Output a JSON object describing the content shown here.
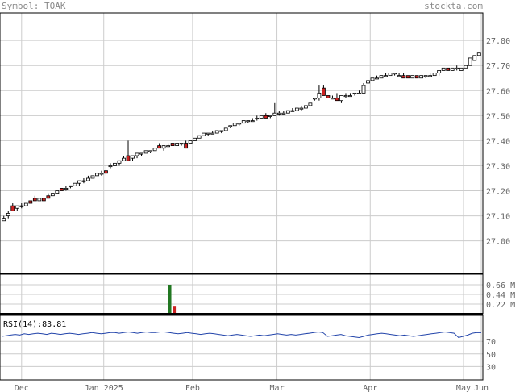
{
  "header": {
    "symbol_label": "Symbol: TOAK",
    "site": "stockta.com"
  },
  "colors": {
    "grid": "#cccccc",
    "frame": "#000000",
    "up": "#ffffff",
    "down": "#cc2222",
    "vol_up": "#227722",
    "vol_down": "#cc2222",
    "rsi_line": "#2244aa"
  },
  "chart_data": [
    {
      "type": "candlestick",
      "title": "",
      "y_ticks": [
        "27.80",
        "27.70",
        "27.60",
        "27.50",
        "27.40",
        "27.30",
        "27.20",
        "27.10",
        "27.00"
      ],
      "ylim": [
        26.87,
        27.91
      ],
      "x_ticks": [
        "Dec",
        "Jan 2025",
        "Feb",
        "Mar",
        "Apr",
        "May",
        "Jun"
      ],
      "grid": true,
      "series": [
        {
          "date": "Nov 27",
          "o": 27.08,
          "h": 27.1,
          "l": 27.08,
          "c": 27.09
        },
        {
          "date": "Nov 29",
          "o": 27.1,
          "h": 27.12,
          "l": 27.09,
          "c": 27.11
        },
        {
          "date": "Dec 2",
          "o": 27.14,
          "h": 27.15,
          "l": 27.12,
          "c": 27.12
        },
        {
          "date": "Dec 3",
          "o": 27.13,
          "h": 27.14,
          "l": 27.12,
          "c": 27.14
        },
        {
          "date": "Dec 4",
          "o": 27.14,
          "h": 27.15,
          "l": 27.13,
          "c": 27.14
        },
        {
          "date": "Dec 5",
          "o": 27.14,
          "h": 27.15,
          "l": 27.14,
          "c": 27.15
        },
        {
          "date": "Dec 6",
          "o": 27.16,
          "h": 27.16,
          "l": 27.15,
          "c": 27.15
        },
        {
          "date": "Dec 9",
          "o": 27.17,
          "h": 27.18,
          "l": 27.16,
          "c": 27.16
        },
        {
          "date": "Dec 10",
          "o": 27.16,
          "h": 27.17,
          "l": 27.16,
          "c": 27.17
        },
        {
          "date": "Dec 11",
          "o": 27.17,
          "h": 27.17,
          "l": 27.16,
          "c": 27.16
        },
        {
          "date": "Dec 12",
          "o": 27.18,
          "h": 27.19,
          "l": 27.17,
          "c": 27.17
        },
        {
          "date": "Dec 13",
          "o": 27.18,
          "h": 27.19,
          "l": 27.18,
          "c": 27.19
        },
        {
          "date": "Dec 16",
          "o": 27.19,
          "h": 27.2,
          "l": 27.19,
          "c": 27.2
        },
        {
          "date": "Dec 17",
          "o": 27.21,
          "h": 27.21,
          "l": 27.2,
          "c": 27.2
        },
        {
          "date": "Dec 18",
          "o": 27.21,
          "h": 27.22,
          "l": 27.2,
          "c": 27.21
        },
        {
          "date": "Dec 19",
          "o": 27.22,
          "h": 27.22,
          "l": 27.21,
          "c": 27.22
        },
        {
          "date": "Dec 20",
          "o": 27.22,
          "h": 27.23,
          "l": 27.22,
          "c": 27.23
        },
        {
          "date": "Dec 23",
          "o": 27.23,
          "h": 27.24,
          "l": 27.22,
          "c": 27.24
        },
        {
          "date": "Dec 24",
          "o": 27.24,
          "h": 27.25,
          "l": 27.23,
          "c": 27.24
        },
        {
          "date": "Dec 26",
          "o": 27.24,
          "h": 27.26,
          "l": 27.24,
          "c": 27.25
        },
        {
          "date": "Dec 27",
          "o": 27.25,
          "h": 27.26,
          "l": 27.25,
          "c": 27.26
        },
        {
          "date": "Dec 30",
          "o": 27.26,
          "h": 27.27,
          "l": 27.26,
          "c": 27.27
        },
        {
          "date": "Dec 31",
          "o": 27.27,
          "h": 27.28,
          "l": 27.26,
          "c": 27.27
        },
        {
          "date": "Jan 2",
          "o": 27.28,
          "h": 27.3,
          "l": 27.26,
          "c": 27.27
        },
        {
          "date": "Jan 3",
          "o": 27.3,
          "h": 27.31,
          "l": 27.29,
          "c": 27.3
        },
        {
          "date": "Jan 6",
          "o": 27.3,
          "h": 27.31,
          "l": 27.3,
          "c": 27.31
        },
        {
          "date": "Jan 7",
          "o": 27.31,
          "h": 27.32,
          "l": 27.3,
          "c": 27.32
        },
        {
          "date": "Jan 8",
          "o": 27.32,
          "h": 27.34,
          "l": 27.32,
          "c": 27.33
        },
        {
          "date": "Jan 10",
          "o": 27.34,
          "h": 27.4,
          "l": 27.32,
          "c": 27.32
        },
        {
          "date": "Jan 13",
          "o": 27.33,
          "h": 27.34,
          "l": 27.32,
          "c": 27.34
        },
        {
          "date": "Jan 14",
          "o": 27.34,
          "h": 27.35,
          "l": 27.33,
          "c": 27.35
        },
        {
          "date": "Jan 15",
          "o": 27.35,
          "h": 27.35,
          "l": 27.34,
          "c": 27.35
        },
        {
          "date": "Jan 16",
          "o": 27.35,
          "h": 27.36,
          "l": 27.35,
          "c": 27.36
        },
        {
          "date": "Jan 17",
          "o": 27.36,
          "h": 27.36,
          "l": 27.35,
          "c": 27.36
        },
        {
          "date": "Jan 21",
          "o": 27.36,
          "h": 27.37,
          "l": 27.36,
          "c": 27.37
        },
        {
          "date": "Jan 22",
          "o": 27.38,
          "h": 27.39,
          "l": 27.37,
          "c": 27.37
        },
        {
          "date": "Jan 23",
          "o": 27.37,
          "h": 27.38,
          "l": 27.36,
          "c": 27.38
        },
        {
          "date": "Jan 24",
          "o": 27.38,
          "h": 27.39,
          "l": 27.38,
          "c": 27.38
        },
        {
          "date": "Jan 27",
          "o": 27.39,
          "h": 27.39,
          "l": 27.38,
          "c": 27.38
        },
        {
          "date": "Jan 28",
          "o": 27.38,
          "h": 27.39,
          "l": 27.38,
          "c": 27.39
        },
        {
          "date": "Jan 29",
          "o": 27.39,
          "h": 27.39,
          "l": 27.38,
          "c": 27.39
        },
        {
          "date": "Jan 30",
          "o": 27.39,
          "h": 27.4,
          "l": 27.37,
          "c": 27.37
        },
        {
          "date": "Jan 31",
          "o": 27.39,
          "h": 27.4,
          "l": 27.39,
          "c": 27.4
        },
        {
          "date": "Feb 3",
          "o": 27.4,
          "h": 27.41,
          "l": 27.4,
          "c": 27.41
        },
        {
          "date": "Feb 4",
          "o": 27.41,
          "h": 27.42,
          "l": 27.41,
          "c": 27.42
        },
        {
          "date": "Feb 5",
          "o": 27.42,
          "h": 27.43,
          "l": 27.42,
          "c": 27.43
        },
        {
          "date": "Feb 6",
          "o": 27.43,
          "h": 27.43,
          "l": 27.42,
          "c": 27.43
        },
        {
          "date": "Feb 7",
          "o": 27.43,
          "h": 27.44,
          "l": 27.43,
          "c": 27.43
        },
        {
          "date": "Feb 10",
          "o": 27.43,
          "h": 27.44,
          "l": 27.43,
          "c": 27.44
        },
        {
          "date": "Feb 11",
          "o": 27.44,
          "h": 27.44,
          "l": 27.43,
          "c": 27.44
        },
        {
          "date": "Feb 12",
          "o": 27.44,
          "h": 27.45,
          "l": 27.44,
          "c": 27.45
        },
        {
          "date": "Feb 13",
          "o": 27.46,
          "h": 27.46,
          "l": 27.45,
          "c": 27.46
        },
        {
          "date": "Feb 14",
          "o": 27.46,
          "h": 27.47,
          "l": 27.46,
          "c": 27.47
        },
        {
          "date": "Feb 18",
          "o": 27.47,
          "h": 27.47,
          "l": 27.46,
          "c": 27.47
        },
        {
          "date": "Feb 19",
          "o": 27.47,
          "h": 27.48,
          "l": 27.47,
          "c": 27.48
        },
        {
          "date": "Feb 20",
          "o": 27.48,
          "h": 27.48,
          "l": 27.47,
          "c": 27.48
        },
        {
          "date": "Feb 21",
          "o": 27.48,
          "h": 27.49,
          "l": 27.48,
          "c": 27.48
        },
        {
          "date": "Feb 24",
          "o": 27.49,
          "h": 27.5,
          "l": 27.48,
          "c": 27.49
        },
        {
          "date": "Feb 25",
          "o": 27.49,
          "h": 27.5,
          "l": 27.49,
          "c": 27.5
        },
        {
          "date": "Feb 26",
          "o": 27.5,
          "h": 27.51,
          "l": 27.49,
          "c": 27.49
        },
        {
          "date": "Feb 27",
          "o": 27.5,
          "h": 27.5,
          "l": 27.49,
          "c": 27.5
        },
        {
          "date": "Feb 28",
          "o": 27.5,
          "h": 27.55,
          "l": 27.5,
          "c": 27.51
        },
        {
          "date": "Mar 3",
          "o": 27.51,
          "h": 27.52,
          "l": 27.5,
          "c": 27.51
        },
        {
          "date": "Mar 4",
          "o": 27.51,
          "h": 27.52,
          "l": 27.51,
          "c": 27.51
        },
        {
          "date": "Mar 5",
          "o": 27.51,
          "h": 27.52,
          "l": 27.51,
          "c": 27.52
        },
        {
          "date": "Mar 6",
          "o": 27.52,
          "h": 27.53,
          "l": 27.52,
          "c": 27.52
        },
        {
          "date": "Mar 7",
          "o": 27.52,
          "h": 27.53,
          "l": 27.52,
          "c": 27.53
        },
        {
          "date": "Mar 10",
          "o": 27.53,
          "h": 27.54,
          "l": 27.52,
          "c": 27.53
        },
        {
          "date": "Mar 11",
          "o": 27.53,
          "h": 27.54,
          "l": 27.53,
          "c": 27.54
        },
        {
          "date": "Mar 12",
          "o": 27.54,
          "h": 27.55,
          "l": 27.54,
          "c": 27.55
        },
        {
          "date": "Mar 13",
          "o": 27.57,
          "h": 27.57,
          "l": 27.56,
          "c": 27.57
        },
        {
          "date": "Mar 14",
          "o": 27.57,
          "h": 27.62,
          "l": 27.56,
          "c": 27.59
        },
        {
          "date": "Mar 17",
          "o": 27.61,
          "h": 27.62,
          "l": 27.58,
          "c": 27.58
        },
        {
          "date": "Mar 18",
          "o": 27.58,
          "h": 27.58,
          "l": 27.57,
          "c": 27.57
        },
        {
          "date": "Mar 19",
          "o": 27.57,
          "h": 27.58,
          "l": 27.57,
          "c": 27.57
        },
        {
          "date": "Mar 20",
          "o": 27.57,
          "h": 27.59,
          "l": 27.56,
          "c": 27.56
        },
        {
          "date": "Mar 21",
          "o": 27.56,
          "h": 27.58,
          "l": 27.55,
          "c": 27.58
        },
        {
          "date": "Mar 24",
          "o": 27.58,
          "h": 27.59,
          "l": 27.57,
          "c": 27.58
        },
        {
          "date": "Mar 25",
          "o": 27.58,
          "h": 27.59,
          "l": 27.58,
          "c": 27.58
        },
        {
          "date": "Mar 26",
          "o": 27.59,
          "h": 27.59,
          "l": 27.58,
          "c": 27.59
        },
        {
          "date": "Mar 27",
          "o": 27.59,
          "h": 27.6,
          "l": 27.59,
          "c": 27.59
        },
        {
          "date": "Mar 28",
          "o": 27.59,
          "h": 27.63,
          "l": 27.59,
          "c": 27.62
        },
        {
          "date": "Mar 31",
          "o": 27.63,
          "h": 27.65,
          "l": 27.62,
          "c": 27.64
        },
        {
          "date": "Apr 1",
          "o": 27.64,
          "h": 27.65,
          "l": 27.64,
          "c": 27.65
        },
        {
          "date": "Apr 2",
          "o": 27.65,
          "h": 27.66,
          "l": 27.65,
          "c": 27.65
        },
        {
          "date": "Apr 3",
          "o": 27.65,
          "h": 27.66,
          "l": 27.65,
          "c": 27.66
        },
        {
          "date": "Apr 4",
          "o": 27.66,
          "h": 27.67,
          "l": 27.66,
          "c": 27.66
        },
        {
          "date": "Apr 7",
          "o": 27.66,
          "h": 27.67,
          "l": 27.66,
          "c": 27.67
        },
        {
          "date": "Apr 8",
          "o": 27.67,
          "h": 27.67,
          "l": 27.66,
          "c": 27.67
        },
        {
          "date": "Apr 9",
          "o": 27.66,
          "h": 27.67,
          "l": 27.66,
          "c": 27.66
        },
        {
          "date": "Apr 10",
          "o": 27.66,
          "h": 27.67,
          "l": 27.65,
          "c": 27.65
        },
        {
          "date": "Apr 11",
          "o": 27.66,
          "h": 27.66,
          "l": 27.65,
          "c": 27.65
        },
        {
          "date": "Apr 14",
          "o": 27.65,
          "h": 27.66,
          "l": 27.65,
          "c": 27.66
        },
        {
          "date": "Apr 15",
          "o": 27.66,
          "h": 27.66,
          "l": 27.65,
          "c": 27.65
        },
        {
          "date": "Apr 16",
          "o": 27.65,
          "h": 27.66,
          "l": 27.65,
          "c": 27.66
        },
        {
          "date": "Apr 17",
          "o": 27.66,
          "h": 27.66,
          "l": 27.65,
          "c": 27.66
        },
        {
          "date": "Apr 21",
          "o": 27.66,
          "h": 27.67,
          "l": 27.66,
          "c": 27.66
        },
        {
          "date": "Apr 22",
          "o": 27.66,
          "h": 27.67,
          "l": 27.66,
          "c": 27.67
        },
        {
          "date": "Apr 23",
          "o": 27.67,
          "h": 27.68,
          "l": 27.66,
          "c": 27.68
        },
        {
          "date": "Apr 24",
          "o": 27.68,
          "h": 27.69,
          "l": 27.68,
          "c": 27.69
        },
        {
          "date": "Apr 25",
          "o": 27.69,
          "h": 27.69,
          "l": 27.68,
          "c": 27.68
        },
        {
          "date": "Apr 28",
          "o": 27.68,
          "h": 27.69,
          "l": 27.68,
          "c": 27.69
        },
        {
          "date": "Apr 29",
          "o": 27.69,
          "h": 27.7,
          "l": 27.68,
          "c": 27.69
        },
        {
          "date": "Apr 30",
          "o": 27.68,
          "h": 27.69,
          "l": 27.68,
          "c": 27.69
        },
        {
          "date": "May 1",
          "o": 27.69,
          "h": 27.7,
          "l": 27.69,
          "c": 27.7
        },
        {
          "date": "May 2",
          "o": 27.7,
          "h": 27.73,
          "l": 27.7,
          "c": 27.73
        },
        {
          "date": "May 5",
          "o": 27.72,
          "h": 27.74,
          "l": 27.72,
          "c": 27.74
        },
        {
          "date": "May 6",
          "o": 27.74,
          "h": 27.75,
          "l": 27.74,
          "c": 27.75
        }
      ]
    },
    {
      "type": "bar",
      "title": "",
      "y_ticks": [
        "0.66 M",
        "0.44 M",
        "0.22 M"
      ],
      "ylim": [
        0,
        0.88
      ],
      "series": [
        {
          "name": "",
          "values": [
            0.004,
            0.003,
            0.004,
            0.003,
            0.002,
            0.004,
            0.003,
            0.004,
            0.003,
            0.003,
            0.004,
            0.003,
            0.003,
            0.004,
            0.003,
            0.004,
            0.003,
            0.004,
            0.003,
            0.003,
            0.004,
            0.003,
            0.004,
            0.003,
            0.003,
            0.004,
            0.003,
            0.003,
            0.004,
            0.003,
            0.003,
            0.004,
            0.003,
            0.004,
            0.003,
            0.003,
            0.004,
            0.66,
            0.18,
            0.003,
            0.004,
            0.003,
            0.003,
            0.004,
            0.003,
            0.004,
            0.003,
            0.003,
            0.004,
            0.003,
            0.004,
            0.003,
            0.003,
            0.004,
            0.003,
            0.004,
            0.003,
            0.003,
            0.004,
            0.003,
            0.004,
            0.003,
            0.003,
            0.004,
            0.003,
            0.004,
            0.003,
            0.003,
            0.004,
            0.003,
            0.004,
            0.003,
            0.003,
            0.004,
            0.003,
            0.004,
            0.003,
            0.003,
            0.004,
            0.003,
            0.004,
            0.003,
            0.003,
            0.004,
            0.003,
            0.004,
            0.003,
            0.003,
            0.004,
            0.003,
            0.004,
            0.003,
            0.003,
            0.004,
            0.003,
            0.004,
            0.003,
            0.003,
            0.004,
            0.003,
            0.004,
            0.003,
            0.003,
            0.004,
            0.003,
            0.004,
            0.003
          ]
        }
      ]
    },
    {
      "type": "line",
      "title": "RSI(14):83.81",
      "y_ticks": [
        "70",
        "50",
        "30"
      ],
      "ylim": [
        10,
        110
      ],
      "series": [
        {
          "name": "RSI(14)",
          "values": [
            78,
            79,
            80,
            81,
            80,
            82,
            81,
            82,
            83,
            82,
            81,
            83,
            82,
            81,
            82,
            83,
            82,
            81,
            82,
            83,
            84,
            83,
            82,
            83,
            84,
            84,
            83,
            84,
            85,
            84,
            83,
            84,
            85,
            84,
            84,
            85,
            85,
            84,
            83,
            82,
            83,
            84,
            83,
            82,
            81,
            82,
            83,
            82,
            81,
            80,
            79,
            80,
            81,
            80,
            79,
            78,
            79,
            80,
            79,
            80,
            81,
            82,
            81,
            80,
            81,
            80,
            81,
            82,
            83,
            84,
            85,
            84,
            78,
            79,
            80,
            81,
            79,
            78,
            77,
            76,
            78,
            80,
            81,
            82,
            83,
            82,
            81,
            80,
            79,
            80,
            79,
            78,
            79,
            80,
            81,
            82,
            83,
            84,
            85,
            84,
            83,
            76,
            78,
            80,
            83,
            84,
            83.81
          ]
        }
      ]
    }
  ]
}
